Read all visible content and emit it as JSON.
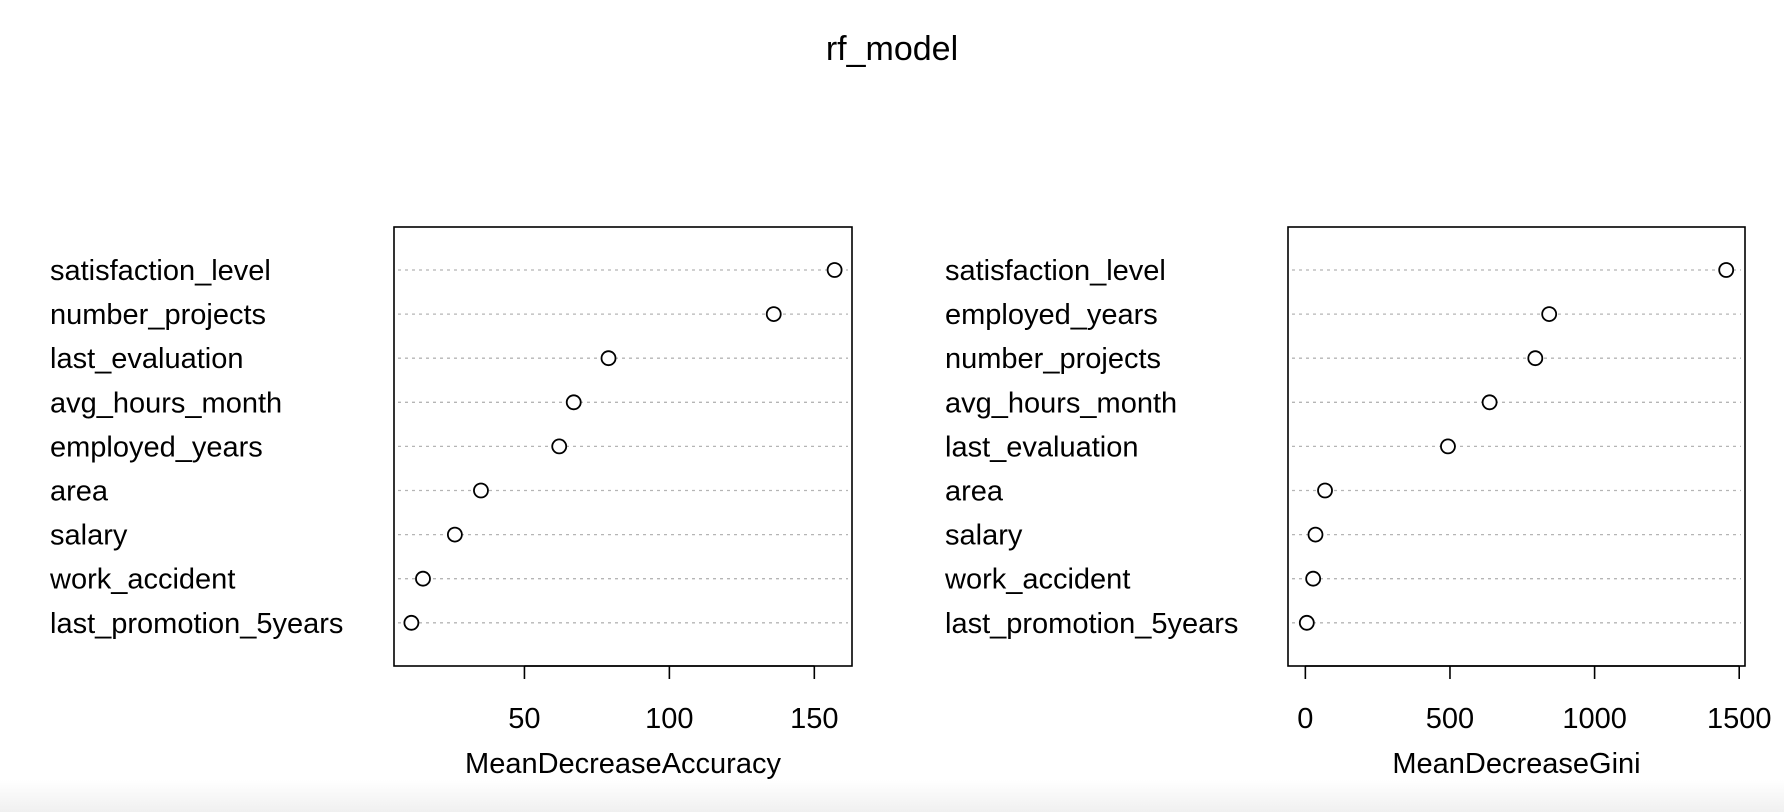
{
  "title": "rf_model",
  "chart_data": [
    {
      "type": "scatter",
      "subtype": "dotchart",
      "xlabel": "MeanDecreaseAccuracy",
      "xlim": [
        5,
        163
      ],
      "xticks": [
        50,
        100,
        150
      ],
      "grid": "horizontal dotted",
      "labels": [
        "satisfaction_level",
        "number_projects",
        "last_evaluation",
        "avg_hours_month",
        "employed_years",
        "area",
        "salary",
        "work_accident",
        "last_promotion_5years"
      ],
      "values": [
        157,
        136,
        79,
        67,
        62,
        35,
        26,
        15,
        11
      ]
    },
    {
      "type": "scatter",
      "subtype": "dotchart",
      "xlabel": "MeanDecreaseGini",
      "xlim": [
        -60,
        1520
      ],
      "xticks": [
        0,
        500,
        1000,
        1500
      ],
      "grid": "horizontal dotted",
      "labels": [
        "satisfaction_level",
        "employed_years",
        "number_projects",
        "avg_hours_month",
        "last_evaluation",
        "area",
        "salary",
        "work_accident",
        "last_promotion_5years"
      ],
      "values": [
        1455,
        843,
        795,
        637,
        493,
        68,
        35,
        27,
        5
      ]
    }
  ]
}
